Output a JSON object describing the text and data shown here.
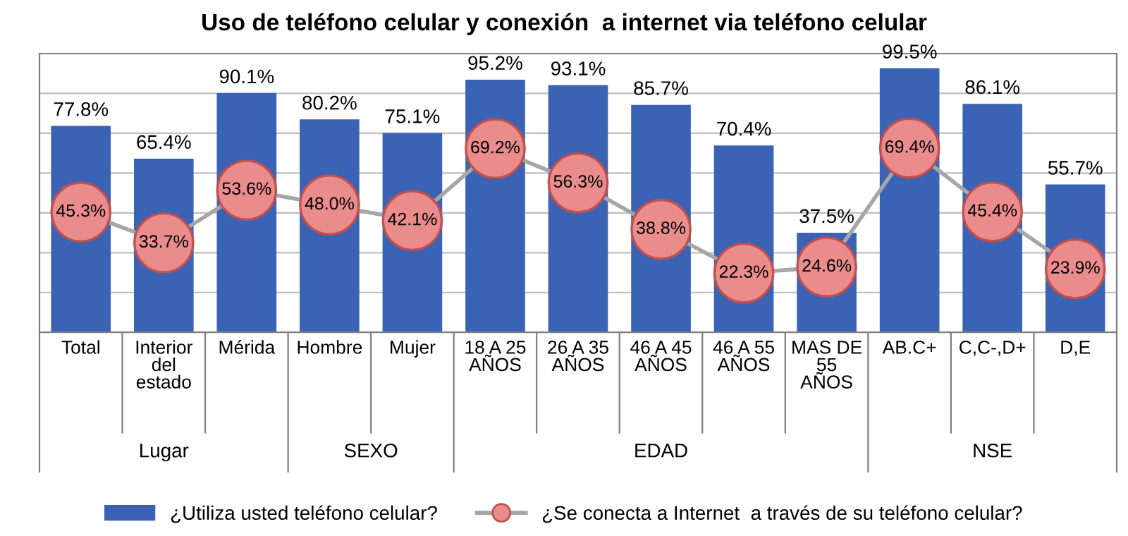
{
  "chart_data": {
    "type": "bar",
    "title": "Uso de teléfono celular y conexión  a internet via teléfono celular",
    "categories": [
      "Total",
      "Interior\ndel\nestado",
      "Mérida",
      "Hombre",
      "Mujer",
      "18 A 25\nAÑOS",
      "26 A 35\nAÑOS",
      "46 A 45\nAÑOS",
      "46 A 55\nAÑOS",
      "MAS DE\n55\nAÑOS",
      "AB.C+",
      "C,C-,D+",
      "D,E"
    ],
    "series": [
      {
        "name": "¿Utiliza usted teléfono celular?",
        "color": "#3a62b5",
        "values": [
          77.8,
          65.4,
          90.1,
          80.2,
          75.1,
          95.2,
          93.1,
          85.7,
          70.4,
          37.5,
          99.5,
          86.1,
          55.7
        ],
        "value_labels": [
          "77.8%",
          "65.4%",
          "90.1%",
          "80.2%",
          "75.1%",
          "95.2%",
          "93.1%",
          "85.7%",
          "70.4%",
          "37.5%",
          "99.5%",
          "86.1%",
          "55.7%"
        ]
      },
      {
        "name": "¿Se conecta a Internet  a través de su teléfono celular?",
        "type": "line",
        "color": "#a6a6a6",
        "marker": "circle",
        "values": [
          45.3,
          33.7,
          53.6,
          48.0,
          42.1,
          69.2,
          56.3,
          38.8,
          22.3,
          24.6,
          69.4,
          45.4,
          23.9
        ],
        "value_labels": [
          "45.3%",
          "33.7%",
          "53.6%",
          "48.0%",
          "42.1%",
          "69.2%",
          "56.3%",
          "38.8%",
          "22.3%",
          "24.6%",
          "69.4%",
          "45.4%",
          "23.9%"
        ]
      }
    ],
    "annotations": [
      "Lugar",
      "SEXO",
      "EDAD",
      "NSE"
    ],
    "ylim": [
      0,
      105
    ],
    "yticks": [
      {
        "value": 0,
        "label": null
      },
      {
        "value": 15,
        "label": null
      },
      {
        "value": 30,
        "label": null
      },
      {
        "value": 45,
        "label": null
      },
      {
        "value": 60,
        "label": null
      },
      {
        "value": 75,
        "label": null
      },
      {
        "value": 90,
        "label": null
      }
    ],
    "grid": "y",
    "legend": "bottom",
    "tick_labels": "x"
  }
}
